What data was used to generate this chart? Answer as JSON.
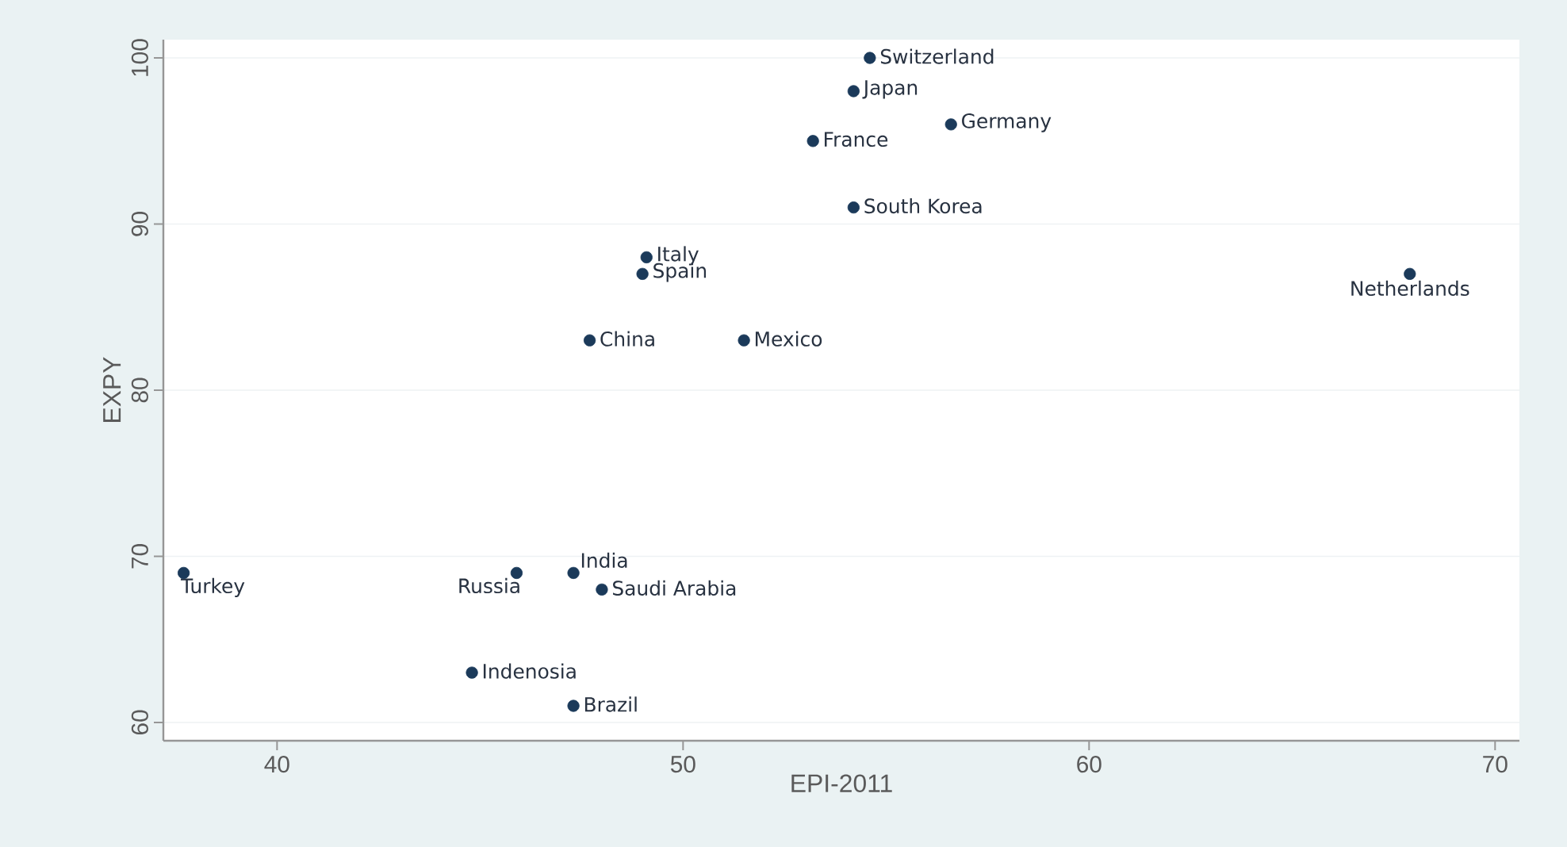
{
  "chart_data": {
    "type": "scatter",
    "xlabel": "EPI-2011",
    "ylabel": "EXPY",
    "xlim": [
      37.2,
      70.6
    ],
    "ylim": [
      58.9,
      101.1
    ],
    "xticks": [
      40,
      50,
      60,
      70
    ],
    "yticks": [
      60,
      70,
      80,
      90,
      100
    ],
    "grid": "y",
    "series": [
      {
        "color": "#1b3a5a",
        "x": [
          54.6,
          54.2,
          56.6,
          53.2,
          54.2,
          49.1,
          49.0,
          47.7,
          51.5,
          67.9,
          37.7,
          45.9,
          47.3,
          48.0,
          44.8,
          47.3
        ],
        "values": [
          100,
          98,
          96,
          95,
          91,
          88,
          87,
          83,
          83,
          87,
          69,
          69,
          69,
          68,
          63,
          61
        ]
      }
    ],
    "annotations": [
      {
        "text": "Switzerland",
        "x": 54.6,
        "y": 100
      },
      {
        "text": "Japan",
        "x": 54.2,
        "y": 98
      },
      {
        "text": "Germany",
        "x": 56.6,
        "y": 96
      },
      {
        "text": "France",
        "x": 53.2,
        "y": 95
      },
      {
        "text": "South Korea",
        "x": 54.2,
        "y": 91
      },
      {
        "text": "Italy",
        "x": 49.1,
        "y": 88
      },
      {
        "text": "Spain",
        "x": 49.0,
        "y": 87
      },
      {
        "text": "China",
        "x": 47.7,
        "y": 83
      },
      {
        "text": "Mexico",
        "x": 51.5,
        "y": 83
      },
      {
        "text": "Netherlands",
        "x": 67.9,
        "y": 87
      },
      {
        "text": "Turkey",
        "x": 37.7,
        "y": 69
      },
      {
        "text": "Russia",
        "x": 45.9,
        "y": 69
      },
      {
        "text": "India",
        "x": 47.3,
        "y": 69
      },
      {
        "text": "Saudi Arabia",
        "x": 48.0,
        "y": 68
      },
      {
        "text": "Indenosia",
        "x": 44.8,
        "y": 63
      },
      {
        "text": "Brazil",
        "x": 47.3,
        "y": 61
      }
    ]
  }
}
